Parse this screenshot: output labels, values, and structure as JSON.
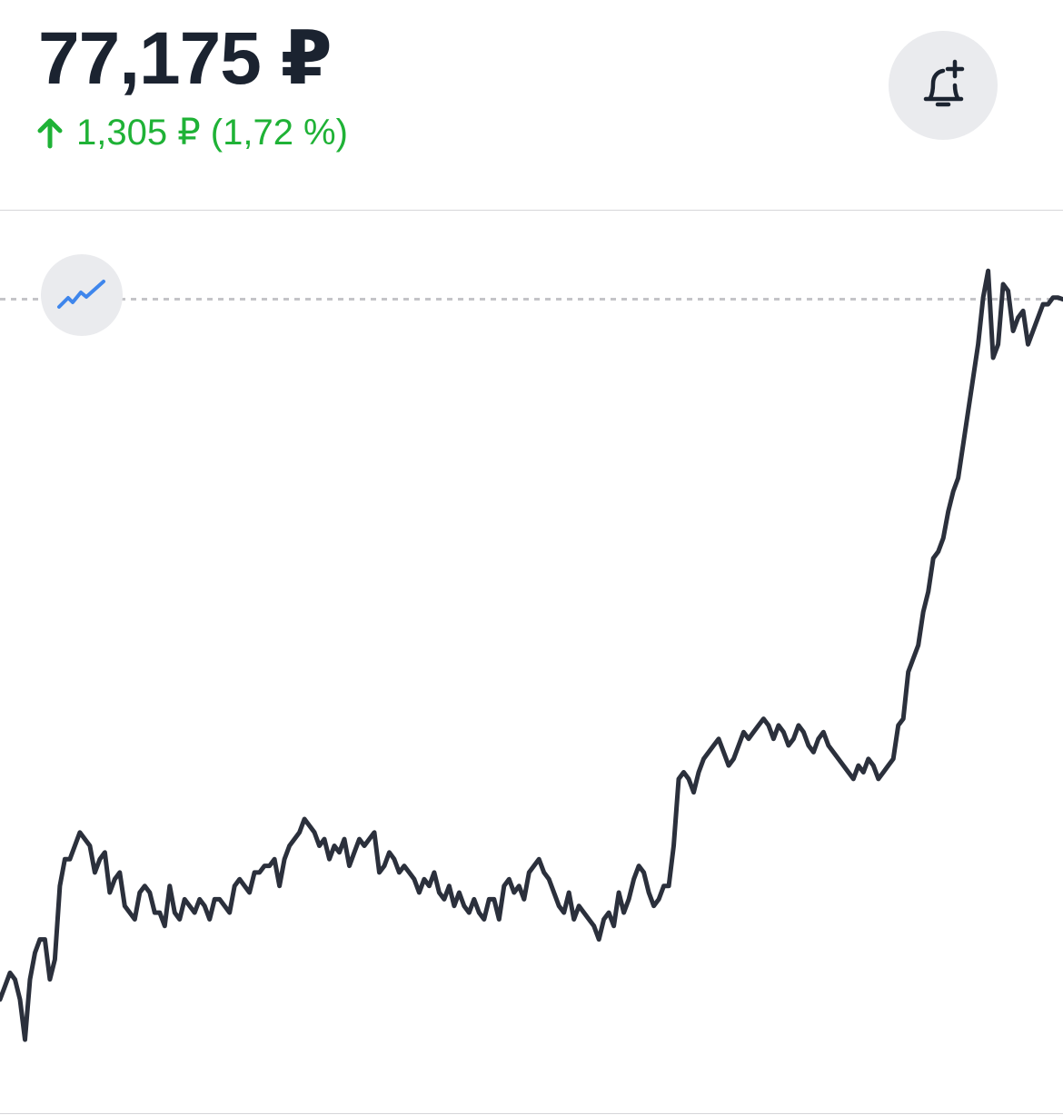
{
  "header": {
    "price": "77,175 ₽",
    "change": "1,305 ₽ (1,72 %)"
  },
  "colors": {
    "price": "#1b2330",
    "positive": "#1fb236",
    "line": "#2b303c",
    "button_bg": "#eaebee",
    "chart_icon": "#3f86ec",
    "dashed": "#c4c4c8"
  },
  "icons": {
    "change": "arrow-up-icon",
    "alert": "bell-plus-icon",
    "chart_type": "line-chart-icon"
  },
  "chart_data": {
    "type": "line",
    "title": "",
    "xlabel": "",
    "ylabel": "",
    "grid": false,
    "legend": "none",
    "ylim": [
      65.0,
      78.5
    ],
    "reference_line": {
      "style": "dashed",
      "value": 77.175
    },
    "series": [
      {
        "values": [
          66.7,
          66.9,
          67.1,
          67.0,
          66.7,
          66.1,
          67.0,
          67.4,
          67.6,
          67.6,
          67.0,
          67.3,
          68.4,
          68.8,
          68.8,
          69.0,
          69.2,
          69.1,
          69.0,
          68.6,
          68.8,
          68.9,
          68.3,
          68.5,
          68.6,
          68.1,
          68.0,
          67.9,
          68.3,
          68.4,
          68.3,
          68.0,
          68.0,
          67.8,
          68.4,
          68.0,
          67.9,
          68.2,
          68.1,
          68.0,
          68.2,
          68.1,
          67.9,
          68.2,
          68.2,
          68.1,
          68.0,
          68.4,
          68.5,
          68.4,
          68.3,
          68.6,
          68.6,
          68.7,
          68.7,
          68.8,
          68.4,
          68.8,
          69.0,
          69.1,
          69.2,
          69.4,
          69.3,
          69.2,
          69.0,
          69.1,
          68.8,
          69.0,
          68.9,
          69.1,
          68.7,
          68.9,
          69.1,
          69.0,
          69.1,
          69.2,
          68.6,
          68.7,
          68.9,
          68.8,
          68.6,
          68.7,
          68.6,
          68.5,
          68.3,
          68.5,
          68.4,
          68.6,
          68.3,
          68.2,
          68.4,
          68.1,
          68.3,
          68.1,
          68.0,
          68.2,
          68.0,
          67.9,
          68.2,
          68.2,
          67.9,
          68.4,
          68.5,
          68.3,
          68.4,
          68.2,
          68.6,
          68.7,
          68.8,
          68.6,
          68.5,
          68.3,
          68.1,
          68.0,
          68.3,
          67.9,
          68.1,
          68.0,
          67.9,
          67.8,
          67.6,
          67.9,
          68.0,
          67.8,
          68.3,
          68.0,
          68.2,
          68.5,
          68.7,
          68.6,
          68.3,
          68.1,
          68.2,
          68.4,
          68.4,
          69.0,
          70.0,
          70.1,
          70.0,
          69.8,
          70.1,
          70.3,
          70.4,
          70.5,
          70.6,
          70.4,
          70.2,
          70.3,
          70.5,
          70.7,
          70.6,
          70.7,
          70.8,
          70.9,
          70.8,
          70.6,
          70.8,
          70.7,
          70.5,
          70.6,
          70.8,
          70.7,
          70.5,
          70.4,
          70.6,
          70.7,
          70.5,
          70.4,
          70.3,
          70.2,
          70.1,
          70.0,
          70.2,
          70.1,
          70.3,
          70.2,
          70.0,
          70.1,
          70.2,
          70.3,
          70.8,
          70.9,
          71.6,
          71.8,
          72.0,
          72.5,
          72.8,
          73.3,
          73.4,
          73.6,
          74.0,
          74.3,
          74.5,
          75.0,
          75.5,
          76.0,
          76.5,
          77.2,
          77.6,
          76.3,
          76.5,
          77.4,
          77.3,
          76.7,
          76.9,
          77.0,
          76.5,
          76.7,
          76.9,
          77.1,
          77.1,
          77.2,
          77.2,
          77.175
        ]
      }
    ]
  }
}
